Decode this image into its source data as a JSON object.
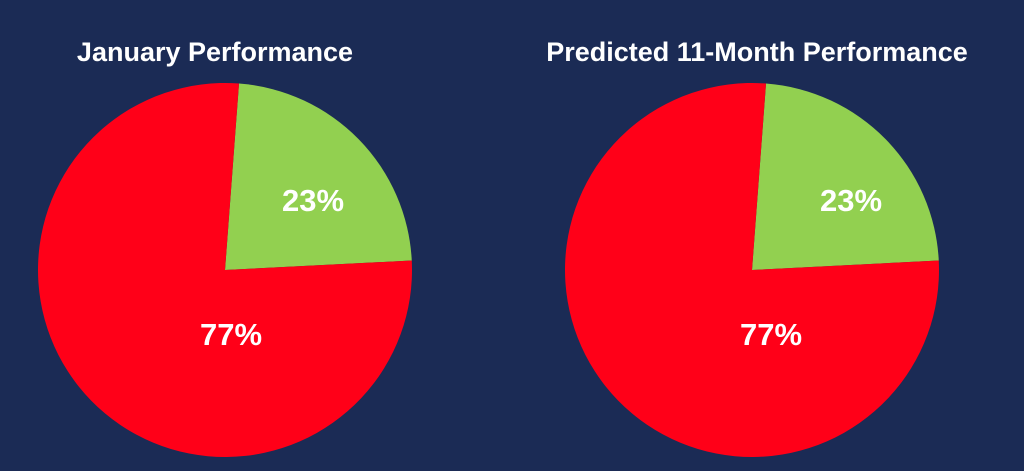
{
  "background_color": "#1b2b55",
  "chart_data": [
    {
      "type": "pie",
      "title": "January Performance",
      "slices": [
        {
          "label": "23%",
          "value": 23,
          "color": "#92d050"
        },
        {
          "label": "77%",
          "value": 77,
          "color": "#ff0018"
        }
      ]
    },
    {
      "type": "pie",
      "title": "Predicted 11-Month Performance",
      "slices": [
        {
          "label": "23%",
          "value": 23,
          "color": "#92d050"
        },
        {
          "label": "77%",
          "value": 77,
          "color": "#ff0018"
        }
      ]
    }
  ]
}
